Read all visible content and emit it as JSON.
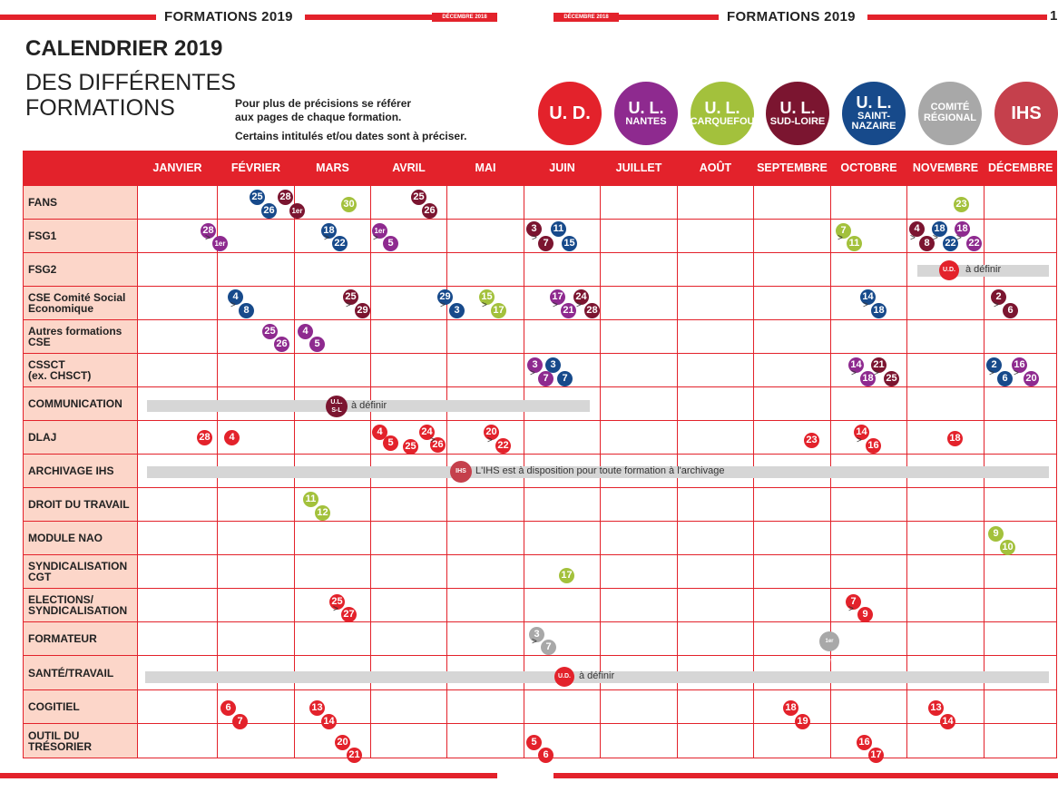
{
  "header": {
    "left_title": "FORMATIONS 2019",
    "right_title": "FORMATIONS 2019",
    "left_tag": "DÉCEMBRE 2018",
    "right_tag": "DÉCEMBRE 2018",
    "page_number": "1"
  },
  "title": "CALENDRIER 2019",
  "subtitle_line1": "DES DIFFÉRENTES",
  "subtitle_line2": "FORMATIONS",
  "note_line1": "Pour plus de précisions se référer",
  "note_line2": "aux pages de chaque formation.",
  "note_line3": "Certains intitulés et/ou dates sont à préciser.",
  "legend": [
    {
      "l1": "U. D.",
      "l2": "",
      "color": "#e3222b"
    },
    {
      "l1": "U. L.",
      "l2": "NANTES",
      "color": "#8e2a8f"
    },
    {
      "l1": "U. L.",
      "l2": "CARQUEFOU",
      "color": "#a3c13c"
    },
    {
      "l1": "U. L.",
      "l2": "SUD-LOIRE",
      "color": "#7b1530"
    },
    {
      "l1": "U. L.",
      "l2": "SAINT-NAZAIRE",
      "color": "#174a8b"
    },
    {
      "l1": "COMITÉ",
      "l2": "RÉGIONAL",
      "color": "#a8a8a8"
    },
    {
      "l1": "IHS",
      "l2": "",
      "color": "#c5404c"
    }
  ],
  "months": [
    "JANVIER",
    "FÉVRIER",
    "MARS",
    "AVRIL",
    "MAI",
    "JUIN",
    "JUILLET",
    "AOÛT",
    "SEPTEMBRE",
    "OCTOBRE",
    "NOVEMBRE",
    "DÉCEMBRE"
  ],
  "rows": [
    {
      "l1": "FANS",
      "l2": ""
    },
    {
      "l1": "FSG1",
      "l2": ""
    },
    {
      "l1": "FSG2",
      "l2": ""
    },
    {
      "l1": "CSE Comité Social",
      "l2": "Economique"
    },
    {
      "l1": "Autres formations",
      "l2": "CSE"
    },
    {
      "l1": "CSSCT",
      "l2": "(ex. CHSCT)"
    },
    {
      "l1": "COMMUNICATION",
      "l2": ""
    },
    {
      "l1": "DLAJ",
      "l2": ""
    },
    {
      "l1": "ARCHIVAGE IHS",
      "l2": ""
    },
    {
      "l1": "DROIT DU TRAVAIL",
      "l2": ""
    },
    {
      "l1": "MODULE NAO",
      "l2": ""
    },
    {
      "l1": "SYNDICALISATION",
      "l2": "CGT"
    },
    {
      "l1": "ELECTIONS/",
      "l2": "SYNDICALISATION"
    },
    {
      "l1": "FORMATEUR",
      "l2": ""
    },
    {
      "l1": "SANTÉ/TRAVAIL",
      "l2": ""
    },
    {
      "l1": "COGITIEL",
      "l2": ""
    },
    {
      "l1": "OUTIL DU",
      "l2": "TRÉSORIER"
    }
  ],
  "bars": {
    "fsg2_text": "à définir",
    "fsg2_badge": "U.D.",
    "communication_text": "à définir",
    "communication_badge_l1": "U.L.",
    "communication_badge_l2": "S-L",
    "archivage_text": "L'IHS est à disposition pour toute formation à l'archivage",
    "archivage_badge": "IHS",
    "sante_text": "à définir",
    "sante_badge": "U.D.",
    "formateur_badge": "1er sem."
  },
  "dates": [
    {
      "t": "25",
      "c": "#174a8b"
    },
    {
      "t": "26",
      "c": "#174a8b"
    },
    {
      "t": "28",
      "c": "#7b1530"
    },
    {
      "t": "1er",
      "c": "#7b1530"
    },
    {
      "t": "30",
      "c": "#a3c13c"
    },
    {
      "t": "25",
      "c": "#7b1530"
    },
    {
      "t": "26",
      "c": "#7b1530"
    },
    {
      "t": "23",
      "c": "#a3c13c"
    },
    {
      "t": "28",
      "c": "#8e2a8f"
    },
    {
      "t": "1er",
      "c": "#8e2a8f"
    },
    {
      "t": "18",
      "c": "#174a8b"
    },
    {
      "t": "22",
      "c": "#174a8b"
    },
    {
      "t": "1er",
      "c": "#8e2a8f"
    },
    {
      "t": "5",
      "c": "#8e2a8f"
    },
    {
      "t": "3",
      "c": "#7b1530"
    },
    {
      "t": "7",
      "c": "#7b1530"
    },
    {
      "t": "11",
      "c": "#174a8b"
    },
    {
      "t": "15",
      "c": "#174a8b"
    },
    {
      "t": "7",
      "c": "#a3c13c"
    },
    {
      "t": "11",
      "c": "#a3c13c"
    },
    {
      "t": "4",
      "c": "#7b1530"
    },
    {
      "t": "8",
      "c": "#7b1530"
    },
    {
      "t": "18",
      "c": "#174a8b"
    },
    {
      "t": "22",
      "c": "#174a8b"
    },
    {
      "t": "18",
      "c": "#8e2a8f"
    },
    {
      "t": "22",
      "c": "#8e2a8f"
    },
    {
      "t": "4",
      "c": "#174a8b"
    },
    {
      "t": "8",
      "c": "#174a8b"
    },
    {
      "t": "25",
      "c": "#7b1530"
    },
    {
      "t": "29",
      "c": "#7b1530"
    },
    {
      "t": "29",
      "c": "#174a8b"
    },
    {
      "t": "3",
      "c": "#174a8b"
    },
    {
      "t": "15",
      "c": "#a3c13c"
    },
    {
      "t": "17",
      "c": "#a3c13c"
    },
    {
      "t": "17",
      "c": "#8e2a8f"
    },
    {
      "t": "21",
      "c": "#8e2a8f"
    },
    {
      "t": "24",
      "c": "#7b1530"
    },
    {
      "t": "28",
      "c": "#7b1530"
    },
    {
      "t": "14",
      "c": "#174a8b"
    },
    {
      "t": "18",
      "c": "#174a8b"
    },
    {
      "t": "2",
      "c": "#7b1530"
    },
    {
      "t": "6",
      "c": "#7b1530"
    },
    {
      "t": "25",
      "c": "#8e2a8f"
    },
    {
      "t": "26",
      "c": "#8e2a8f"
    },
    {
      "t": "4",
      "c": "#8e2a8f"
    },
    {
      "t": "5",
      "c": "#8e2a8f"
    },
    {
      "t": "3",
      "c": "#8e2a8f"
    },
    {
      "t": "7",
      "c": "#8e2a8f"
    },
    {
      "t": "3",
      "c": "#174a8b"
    },
    {
      "t": "7",
      "c": "#174a8b"
    },
    {
      "t": "14",
      "c": "#8e2a8f"
    },
    {
      "t": "18",
      "c": "#8e2a8f"
    },
    {
      "t": "21",
      "c": "#7b1530"
    },
    {
      "t": "25",
      "c": "#7b1530"
    },
    {
      "t": "2",
      "c": "#174a8b"
    },
    {
      "t": "6",
      "c": "#174a8b"
    },
    {
      "t": "16",
      "c": "#8e2a8f"
    },
    {
      "t": "20",
      "c": "#8e2a8f"
    },
    {
      "t": "28",
      "c": "#e3222b"
    },
    {
      "t": "4",
      "c": "#e3222b"
    },
    {
      "t": "4",
      "c": "#e3222b"
    },
    {
      "t": "5",
      "c": "#e3222b"
    },
    {
      "t": "25",
      "c": "#e3222b"
    },
    {
      "t": "24",
      "c": "#e3222b"
    },
    {
      "t": "26",
      "c": "#e3222b"
    },
    {
      "t": "20",
      "c": "#e3222b"
    },
    {
      "t": "22",
      "c": "#e3222b"
    },
    {
      "t": "23",
      "c": "#e3222b"
    },
    {
      "t": "14",
      "c": "#e3222b"
    },
    {
      "t": "16",
      "c": "#e3222b"
    },
    {
      "t": "18",
      "c": "#e3222b"
    },
    {
      "t": "11",
      "c": "#a3c13c"
    },
    {
      "t": "12",
      "c": "#a3c13c"
    },
    {
      "t": "9",
      "c": "#a3c13c"
    },
    {
      "t": "10",
      "c": "#a3c13c"
    },
    {
      "t": "17",
      "c": "#a3c13c"
    },
    {
      "t": "25",
      "c": "#e3222b"
    },
    {
      "t": "27",
      "c": "#e3222b"
    },
    {
      "t": "7",
      "c": "#e3222b"
    },
    {
      "t": "9",
      "c": "#e3222b"
    },
    {
      "t": "3",
      "c": "#a8a8a8"
    },
    {
      "t": "7",
      "c": "#a8a8a8"
    },
    {
      "t": "6",
      "c": "#e3222b"
    },
    {
      "t": "7",
      "c": "#e3222b"
    },
    {
      "t": "13",
      "c": "#e3222b"
    },
    {
      "t": "14",
      "c": "#e3222b"
    },
    {
      "t": "18",
      "c": "#e3222b"
    },
    {
      "t": "19",
      "c": "#e3222b"
    },
    {
      "t": "13",
      "c": "#e3222b"
    },
    {
      "t": "14",
      "c": "#e3222b"
    },
    {
      "t": "20",
      "c": "#e3222b"
    },
    {
      "t": "21",
      "c": "#e3222b"
    },
    {
      "t": "5",
      "c": "#e3222b"
    },
    {
      "t": "6",
      "c": "#e3222b"
    },
    {
      "t": "16",
      "c": "#e3222b"
    },
    {
      "t": "17",
      "c": "#e3222b"
    }
  ],
  "range_symbol": ">"
}
